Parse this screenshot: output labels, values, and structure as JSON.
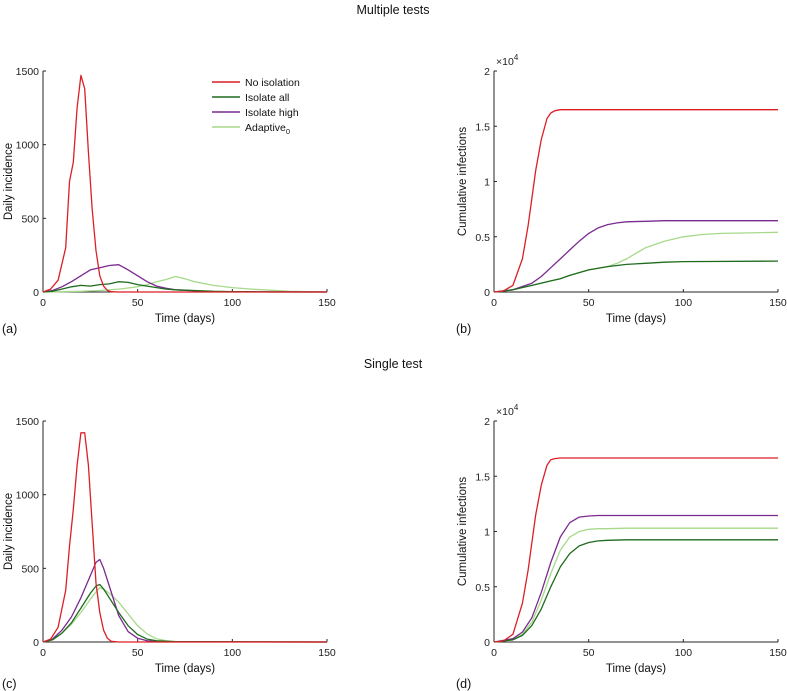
{
  "headers": {
    "top": "Multiple tests",
    "bottom": "Single test"
  },
  "legend": [
    "No isolation",
    "Isolate all",
    "Isolate high",
    "Adaptive"
  ],
  "legend_subscript": "0",
  "colors": {
    "No isolation": "#dc1f26",
    "Isolate all": "#1e6b1e",
    "Isolate high": "#7b2a8f",
    "Adaptive": "#a7d98a"
  },
  "chart_data": [
    {
      "id": "a",
      "panel_label": "(a)",
      "type": "line",
      "xlabel": "Time (days)",
      "ylabel": "Daily incidence",
      "xlim": [
        0,
        150
      ],
      "ylim": [
        0,
        1500
      ],
      "xticks": [
        0,
        50,
        100,
        150
      ],
      "xtick_labels": [
        "0",
        "50",
        "100",
        "150"
      ],
      "yticks": [
        0,
        500,
        1000,
        1500
      ],
      "ytick_labels": [
        "0",
        "500",
        "1000",
        "1500"
      ],
      "exponent_label": "",
      "series": [
        {
          "name": "No isolation",
          "x": [
            0,
            4,
            8,
            12,
            14,
            16,
            18,
            20,
            22,
            24,
            26,
            28,
            30,
            32,
            34,
            36,
            40,
            150
          ],
          "y": [
            0,
            20,
            80,
            300,
            750,
            880,
            1250,
            1470,
            1380,
            950,
            560,
            280,
            110,
            40,
            10,
            2,
            0,
            0
          ]
        },
        {
          "name": "Isolate all",
          "x": [
            0,
            5,
            10,
            15,
            20,
            25,
            30,
            35,
            40,
            45,
            50,
            55,
            60,
            65,
            70,
            80,
            90,
            100,
            110,
            120,
            150
          ],
          "y": [
            0,
            5,
            20,
            35,
            45,
            40,
            50,
            55,
            70,
            65,
            50,
            40,
            30,
            20,
            15,
            10,
            5,
            3,
            2,
            0,
            0
          ]
        },
        {
          "name": "Isolate high",
          "x": [
            0,
            5,
            10,
            15,
            20,
            25,
            30,
            35,
            40,
            45,
            50,
            55,
            60,
            65,
            70,
            80,
            90,
            150
          ],
          "y": [
            0,
            10,
            35,
            70,
            110,
            150,
            165,
            180,
            185,
            150,
            110,
            70,
            40,
            25,
            15,
            8,
            3,
            0
          ]
        },
        {
          "name": "Adaptive",
          "x": [
            0,
            10,
            20,
            30,
            40,
            50,
            55,
            60,
            65,
            70,
            75,
            80,
            90,
            100,
            110,
            120,
            130,
            150
          ],
          "y": [
            0,
            2,
            5,
            10,
            20,
            35,
            50,
            70,
            85,
            105,
            90,
            70,
            45,
            30,
            20,
            12,
            5,
            0
          ]
        }
      ]
    },
    {
      "id": "b",
      "panel_label": "(b)",
      "type": "line",
      "xlabel": "Time (days)",
      "ylabel": "Cumulative infections",
      "xlim": [
        0,
        150
      ],
      "ylim": [
        0,
        2
      ],
      "xticks": [
        0,
        50,
        100,
        150
      ],
      "xtick_labels": [
        "0",
        "50",
        "100",
        "150"
      ],
      "yticks": [
        0,
        0.5,
        1,
        1.5,
        2
      ],
      "ytick_labels": [
        "0",
        "0.5",
        "1",
        "1.5",
        "2"
      ],
      "exponent_label": "×10",
      "exponent_power": "4",
      "series": [
        {
          "name": "No isolation",
          "x": [
            0,
            5,
            10,
            15,
            18,
            20,
            22,
            25,
            28,
            30,
            32,
            35,
            40,
            150
          ],
          "y": [
            0,
            0.01,
            0.06,
            0.3,
            0.6,
            0.85,
            1.1,
            1.38,
            1.57,
            1.62,
            1.64,
            1.65,
            1.65,
            1.65
          ]
        },
        {
          "name": "Isolate all",
          "x": [
            0,
            10,
            20,
            30,
            35,
            40,
            50,
            60,
            70,
            80,
            90,
            100,
            150
          ],
          "y": [
            0,
            0.02,
            0.06,
            0.1,
            0.12,
            0.15,
            0.2,
            0.23,
            0.25,
            0.26,
            0.27,
            0.275,
            0.28
          ]
        },
        {
          "name": "Isolate high",
          "x": [
            0,
            10,
            20,
            25,
            30,
            35,
            40,
            45,
            50,
            55,
            60,
            65,
            70,
            80,
            90,
            150
          ],
          "y": [
            0,
            0.02,
            0.08,
            0.14,
            0.22,
            0.3,
            0.38,
            0.46,
            0.53,
            0.58,
            0.61,
            0.625,
            0.635,
            0.64,
            0.645,
            0.645
          ]
        },
        {
          "name": "Adaptive",
          "x": [
            0,
            10,
            20,
            30,
            35,
            40,
            50,
            60,
            65,
            70,
            75,
            80,
            90,
            100,
            110,
            120,
            150
          ],
          "y": [
            0,
            0.02,
            0.06,
            0.1,
            0.12,
            0.15,
            0.2,
            0.23,
            0.26,
            0.3,
            0.35,
            0.4,
            0.46,
            0.5,
            0.52,
            0.53,
            0.54
          ]
        }
      ]
    },
    {
      "id": "c",
      "panel_label": "(c)",
      "type": "line",
      "xlabel": "Time (days)",
      "ylabel": "Daily incidence",
      "xlim": [
        0,
        150
      ],
      "ylim": [
        0,
        1500
      ],
      "xticks": [
        0,
        50,
        100,
        150
      ],
      "xtick_labels": [
        "0",
        "50",
        "100",
        "150"
      ],
      "yticks": [
        0,
        500,
        1000,
        1500
      ],
      "ytick_labels": [
        "0",
        "500",
        "1000",
        "1500"
      ],
      "exponent_label": "",
      "series": [
        {
          "name": "No isolation",
          "x": [
            0,
            4,
            8,
            12,
            14,
            16,
            18,
            20,
            22,
            24,
            26,
            28,
            30,
            32,
            34,
            36,
            40,
            150
          ],
          "y": [
            0,
            20,
            100,
            350,
            650,
            900,
            1200,
            1420,
            1420,
            1200,
            800,
            400,
            200,
            80,
            25,
            5,
            0,
            0
          ]
        },
        {
          "name": "Isolate all",
          "x": [
            0,
            5,
            10,
            15,
            20,
            25,
            28,
            30,
            32,
            35,
            40,
            45,
            50,
            55,
            60,
            70,
            150
          ],
          "y": [
            0,
            15,
            60,
            130,
            230,
            330,
            380,
            390,
            360,
            300,
            200,
            110,
            50,
            20,
            8,
            2,
            0
          ]
        },
        {
          "name": "Isolate high",
          "x": [
            0,
            5,
            10,
            15,
            20,
            25,
            28,
            30,
            32,
            35,
            40,
            45,
            50,
            55,
            60,
            150
          ],
          "y": [
            0,
            20,
            80,
            170,
            300,
            450,
            540,
            560,
            500,
            380,
            180,
            70,
            25,
            8,
            2,
            0
          ]
        },
        {
          "name": "Adaptive",
          "x": [
            0,
            5,
            10,
            15,
            20,
            25,
            28,
            30,
            33,
            36,
            40,
            45,
            50,
            55,
            60,
            65,
            70,
            150
          ],
          "y": [
            0,
            15,
            60,
            120,
            200,
            290,
            340,
            370,
            350,
            320,
            270,
            190,
            110,
            55,
            22,
            8,
            2,
            0
          ]
        }
      ]
    },
    {
      "id": "d",
      "panel_label": "(d)",
      "type": "line",
      "xlabel": "Time (days)",
      "ylabel": "Cumulative infections",
      "xlim": [
        0,
        150
      ],
      "ylim": [
        0,
        2
      ],
      "xticks": [
        0,
        50,
        100,
        150
      ],
      "xtick_labels": [
        "0",
        "50",
        "100",
        "150"
      ],
      "yticks": [
        0,
        0.5,
        1,
        1.5,
        2
      ],
      "ytick_labels": [
        "0",
        "0.5",
        "1",
        "1.5",
        "2"
      ],
      "exponent_label": "×10",
      "exponent_power": "4",
      "series": [
        {
          "name": "No isolation",
          "x": [
            0,
            5,
            10,
            15,
            18,
            20,
            22,
            25,
            28,
            30,
            32,
            35,
            40,
            150
          ],
          "y": [
            0,
            0.01,
            0.07,
            0.35,
            0.65,
            0.9,
            1.15,
            1.42,
            1.6,
            1.65,
            1.66,
            1.665,
            1.665,
            1.665
          ]
        },
        {
          "name": "Isolate all",
          "x": [
            0,
            10,
            15,
            20,
            25,
            30,
            35,
            40,
            45,
            50,
            55,
            60,
            70,
            150
          ],
          "y": [
            0,
            0.02,
            0.06,
            0.15,
            0.3,
            0.5,
            0.68,
            0.8,
            0.87,
            0.9,
            0.915,
            0.92,
            0.925,
            0.925
          ]
        },
        {
          "name": "Isolate high",
          "x": [
            0,
            10,
            15,
            20,
            25,
            30,
            35,
            40,
            45,
            50,
            55,
            60,
            150
          ],
          "y": [
            0,
            0.03,
            0.09,
            0.22,
            0.45,
            0.72,
            0.95,
            1.08,
            1.13,
            1.14,
            1.145,
            1.145,
            1.145
          ]
        },
        {
          "name": "Adaptive",
          "x": [
            0,
            10,
            15,
            20,
            25,
            30,
            35,
            40,
            45,
            50,
            55,
            60,
            70,
            150
          ],
          "y": [
            0,
            0.02,
            0.07,
            0.18,
            0.38,
            0.62,
            0.83,
            0.95,
            1.0,
            1.02,
            1.025,
            1.025,
            1.03,
            1.03
          ]
        }
      ]
    }
  ]
}
